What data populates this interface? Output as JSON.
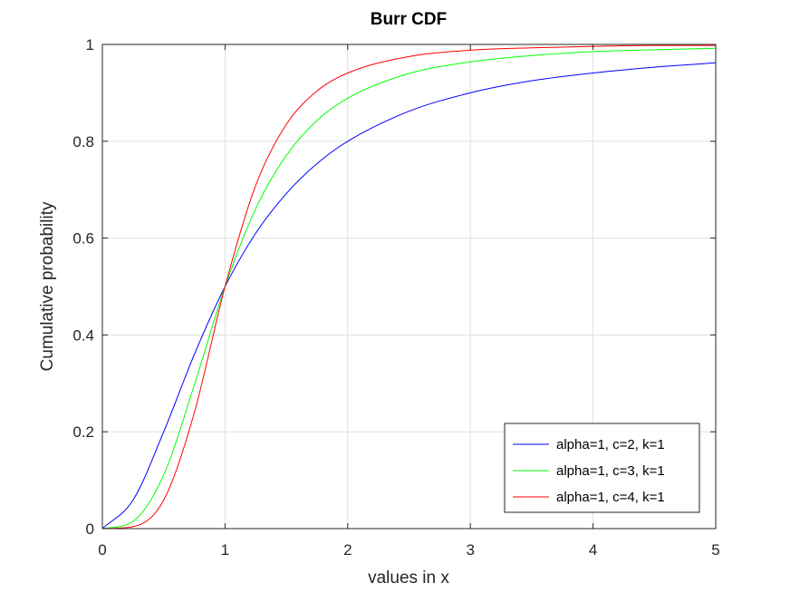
{
  "chart_data": {
    "type": "line",
    "title": "Burr CDF",
    "xlabel": "values in x",
    "ylabel": "Cumulative probability",
    "xlim": [
      0,
      5
    ],
    "ylim": [
      0,
      1
    ],
    "xticks": [
      0,
      1,
      2,
      3,
      4,
      5
    ],
    "xtick_labels": [
      "0",
      "1",
      "2",
      "3",
      "4",
      "5"
    ],
    "yticks": [
      0,
      0.2,
      0.4,
      0.6,
      0.8,
      1
    ],
    "ytick_labels": [
      "0",
      "0.2",
      "0.4",
      "0.6",
      "0.8",
      "1"
    ],
    "grid": true,
    "legend_position": "bottom-right",
    "x": [
      0,
      0.25,
      0.5,
      0.75,
      1,
      1.25,
      1.5,
      1.75,
      2,
      2.5,
      3,
      3.5,
      4,
      4.5,
      5
    ],
    "series": [
      {
        "name": "alpha=1, c=2, k=1",
        "color": "#0000ff",
        "values": [
          0,
          0.059,
          0.2,
          0.36,
          0.5,
          0.61,
          0.692,
          0.754,
          0.8,
          0.862,
          0.9,
          0.925,
          0.941,
          0.953,
          0.962
        ]
      },
      {
        "name": "alpha=1, c=3, k=1",
        "color": "#00ff00",
        "values": [
          0,
          0.015,
          0.111,
          0.297,
          0.5,
          0.661,
          0.771,
          0.843,
          0.889,
          0.94,
          0.964,
          0.977,
          0.985,
          0.989,
          0.992
        ]
      },
      {
        "name": "alpha=1, c=4, k=1",
        "color": "#ff0000",
        "values": [
          0,
          0.004,
          0.059,
          0.24,
          0.5,
          0.709,
          0.835,
          0.904,
          0.941,
          0.975,
          0.988,
          0.993,
          0.996,
          0.998,
          0.998
        ]
      }
    ]
  }
}
